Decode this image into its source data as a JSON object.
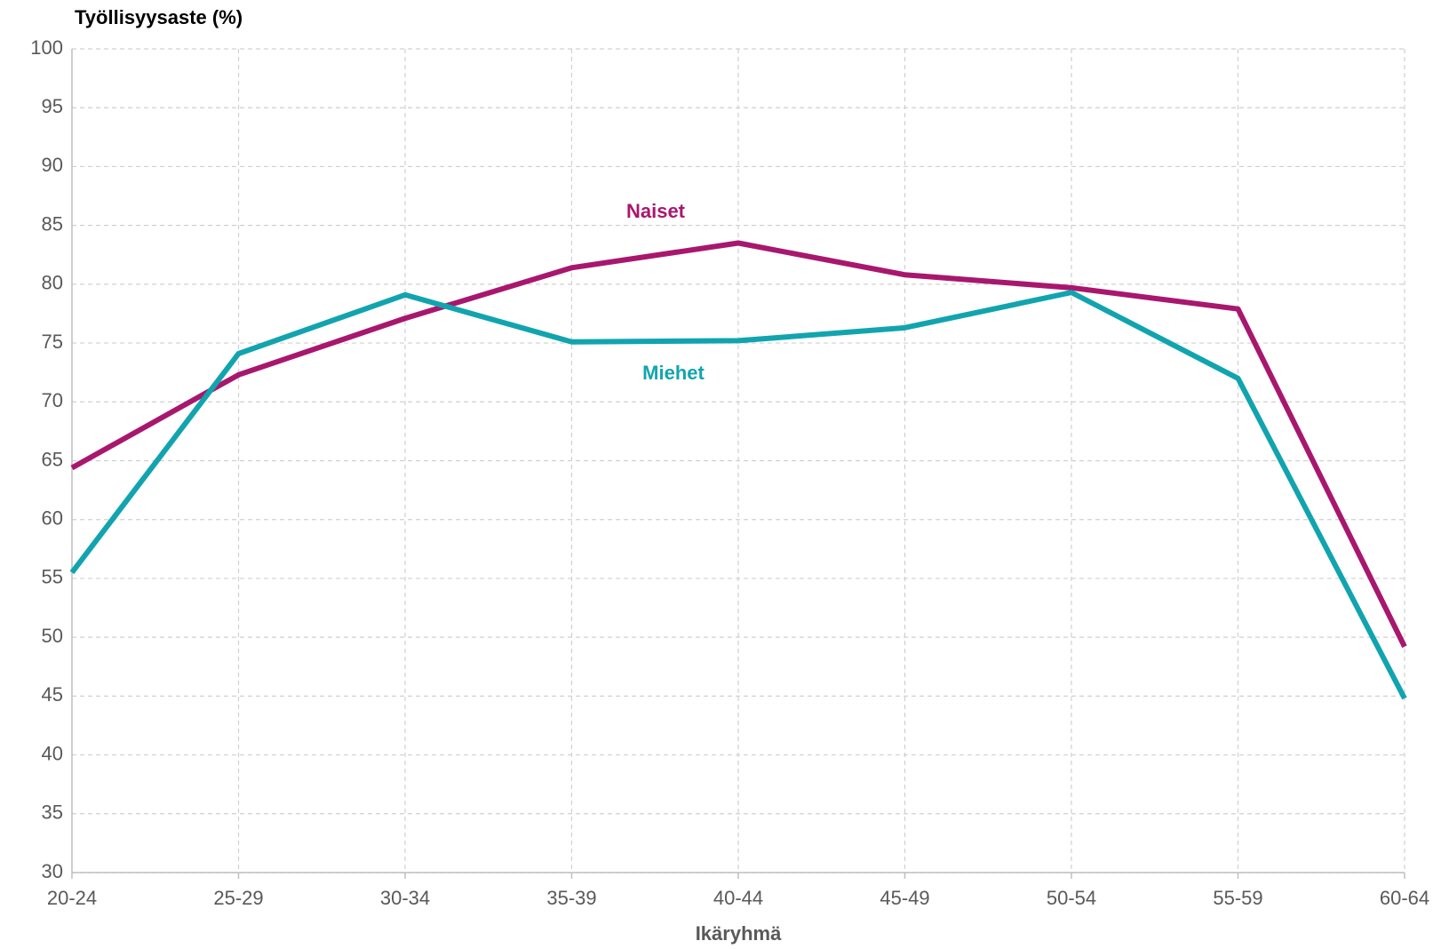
{
  "chart_data": {
    "type": "line",
    "y_axis_label": "Työllisyysaste  (%)",
    "x_axis_label": "Ikäryhmä",
    "categories": [
      "20-24",
      "25-29",
      "30-34",
      "35-39",
      "40-44",
      "45-49",
      "50-54",
      "55-59",
      "60-64"
    ],
    "series": [
      {
        "name": "Naiset",
        "color": "#a8176e",
        "values": [
          64.4,
          72.3,
          77.1,
          81.4,
          83.5,
          80.8,
          79.7,
          77.9,
          49.2
        ]
      },
      {
        "name": "Miehet",
        "color": "#12a4ae",
        "values": [
          55.5,
          74.1,
          79.1,
          75.1,
          75.2,
          76.3,
          79.3,
          72.0,
          44.8
        ]
      }
    ],
    "ylim": [
      30,
      100
    ],
    "yticks": [
      30,
      35,
      40,
      45,
      50,
      55,
      60,
      65,
      70,
      75,
      80,
      85,
      90,
      95,
      100
    ],
    "grid": true
  }
}
